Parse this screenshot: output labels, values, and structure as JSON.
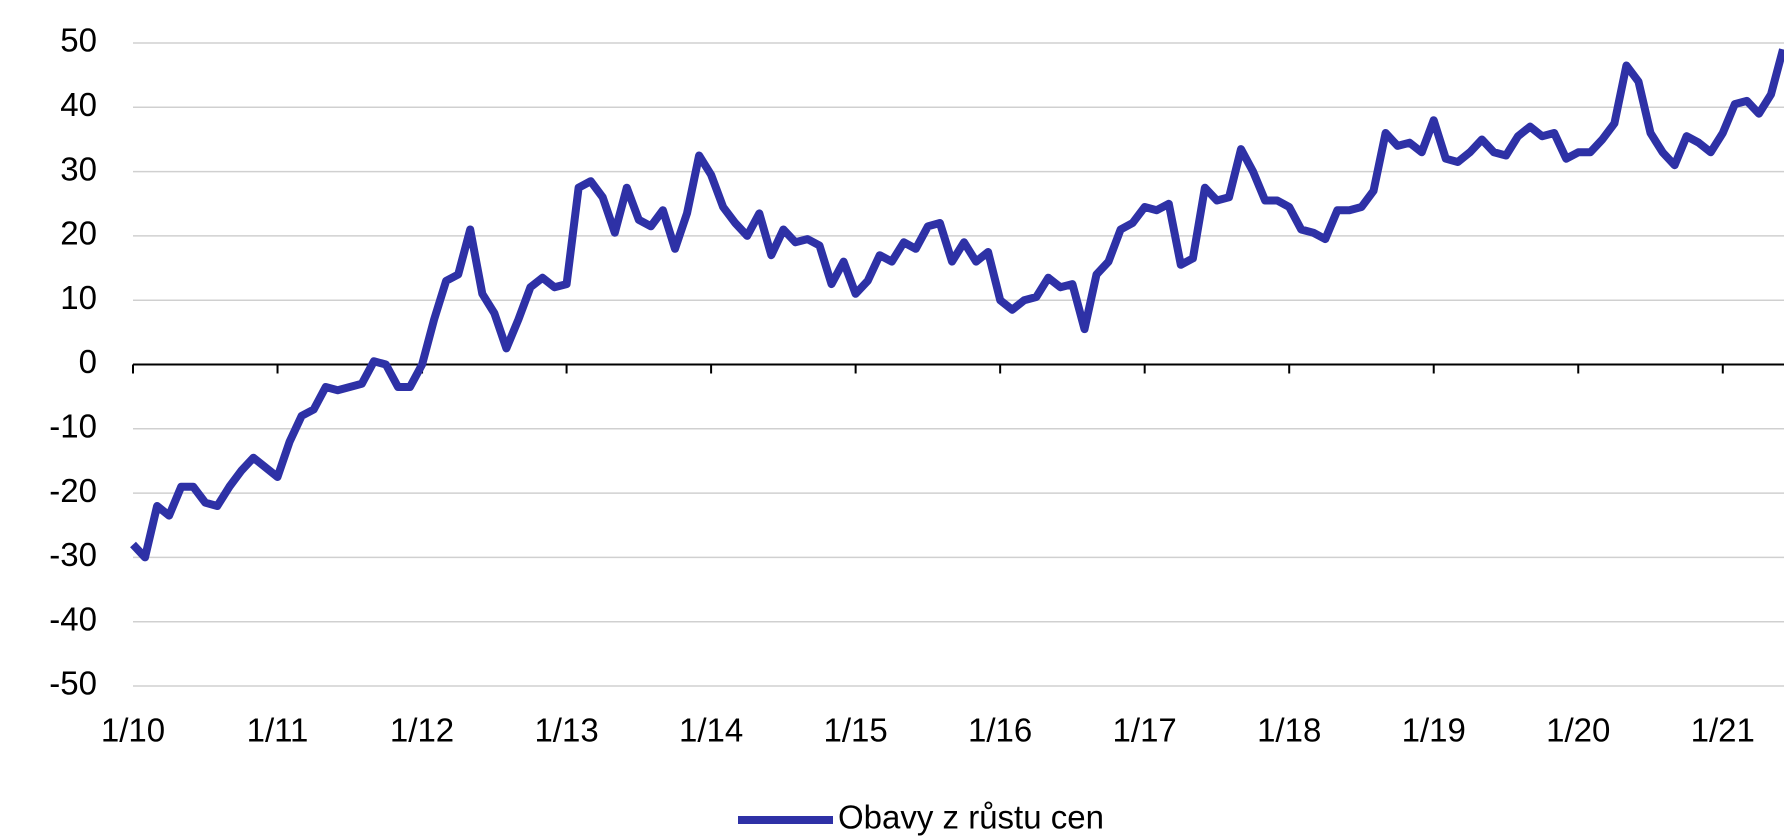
{
  "chart_data": {
    "type": "line",
    "categories": [
      "1/10",
      null,
      null,
      null,
      null,
      null,
      null,
      null,
      null,
      null,
      null,
      null,
      "1/11",
      null,
      null,
      null,
      null,
      null,
      null,
      null,
      null,
      null,
      null,
      null,
      "1/12",
      null,
      null,
      null,
      null,
      null,
      null,
      null,
      null,
      null,
      null,
      null,
      "1/13",
      null,
      null,
      null,
      null,
      null,
      null,
      null,
      null,
      null,
      null,
      null,
      "1/14",
      null,
      null,
      null,
      null,
      null,
      null,
      null,
      null,
      null,
      null,
      null,
      "1/15",
      null,
      null,
      null,
      null,
      null,
      null,
      null,
      null,
      null,
      null,
      null,
      "1/16",
      null,
      null,
      null,
      null,
      null,
      null,
      null,
      null,
      null,
      null,
      null,
      "1/17",
      null,
      null,
      null,
      null,
      null,
      null,
      null,
      null,
      null,
      null,
      null,
      "1/18",
      null,
      null,
      null,
      null,
      null,
      null,
      null,
      null,
      null,
      null,
      null,
      "1/19",
      null,
      null,
      null,
      null,
      null,
      null,
      null,
      null,
      null,
      null,
      null,
      "1/20",
      null,
      null,
      null,
      null,
      null,
      null,
      null,
      null,
      null,
      null,
      null,
      "1/21",
      null,
      null,
      null,
      null,
      null
    ],
    "series": [
      {
        "name": "Obavy z růstu cen",
        "color": "#2e31a6",
        "values": [
          -28,
          -30,
          -22,
          -23.5,
          -19,
          -19,
          -21.5,
          -22,
          -19,
          -16.5,
          -14.5,
          -16,
          -17.5,
          -12,
          -8,
          -7,
          -3.5,
          -4,
          -3.5,
          -3,
          0.5,
          0,
          -3.5,
          -3.5,
          0,
          7,
          13,
          14,
          21,
          11,
          8,
          2.5,
          7,
          12,
          13.5,
          12,
          12.5,
          27.5,
          28.5,
          26,
          20.5,
          27.5,
          22.5,
          21.5,
          24,
          18,
          23.5,
          32.5,
          29.5,
          24.5,
          22,
          20,
          23.5,
          17,
          21,
          19,
          19.5,
          18.5,
          12.5,
          16,
          11,
          13,
          17,
          16,
          19,
          18,
          21.5,
          22,
          16,
          19,
          16,
          17.5,
          10,
          8.5,
          10,
          10.5,
          13.5,
          12,
          12.5,
          5.5,
          14,
          16,
          21,
          22,
          24.5,
          24,
          25,
          15.5,
          16.5,
          27.5,
          25.5,
          26,
          33.5,
          30,
          25.5,
          25.5,
          24.5,
          21,
          20.5,
          19.5,
          24,
          24,
          24.5,
          27,
          36,
          34,
          34.5,
          33,
          38,
          32,
          31.5,
          33,
          35,
          33,
          32.5,
          35.5,
          37,
          35.5,
          36,
          32,
          33,
          33,
          35,
          37.5,
          46.5,
          44,
          36,
          33,
          31,
          35.5,
          34.5,
          33,
          36,
          40.5,
          41,
          39,
          42,
          49
        ]
      }
    ],
    "ylim": [
      -50,
      50
    ],
    "yticks": [
      -50,
      -40,
      -30,
      -20,
      -10,
      0,
      10,
      20,
      30,
      40,
      50
    ],
    "grid": true,
    "legend": "bottom"
  }
}
